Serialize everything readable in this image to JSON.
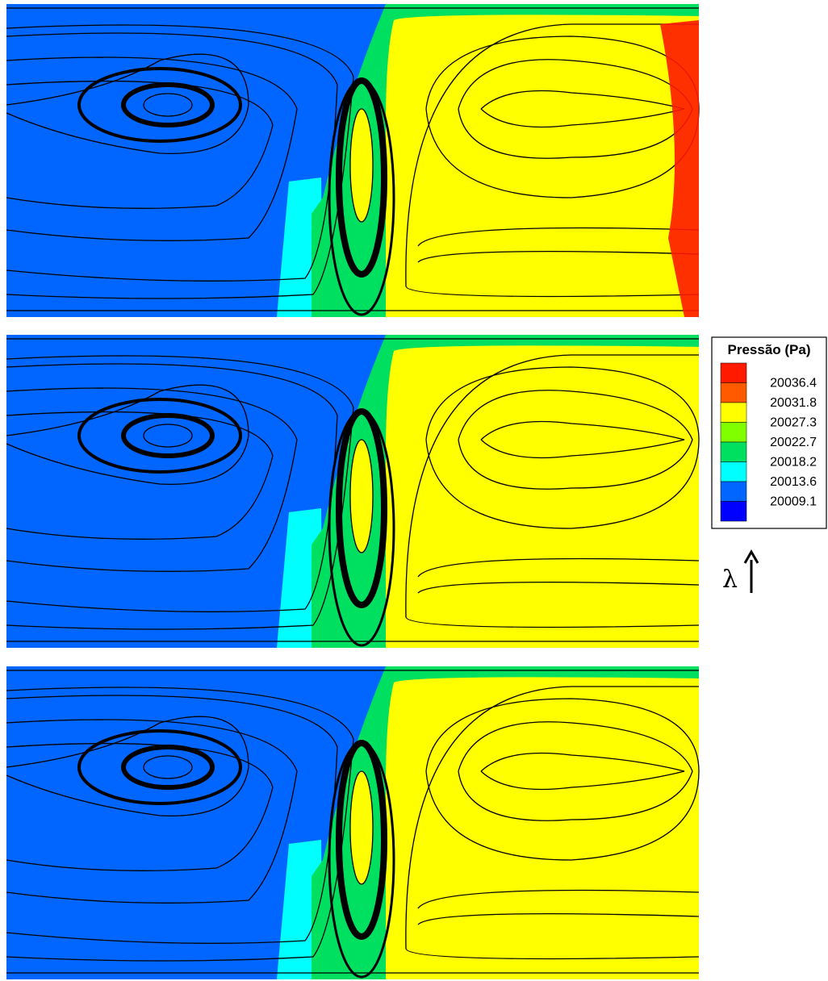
{
  "legend": {
    "title": "Pressão (Pa)",
    "colors": [
      "#ff1a00",
      "#ff5a00",
      "#ffff00",
      "#80ff00",
      "#00e060",
      "#00ffff",
      "#0066ff",
      "#0000ff"
    ],
    "labels": [
      20036.4,
      20031.8,
      20027.3,
      20022.7,
      20018.2,
      20013.6,
      20009.1
    ]
  },
  "annotation": "λ"
}
